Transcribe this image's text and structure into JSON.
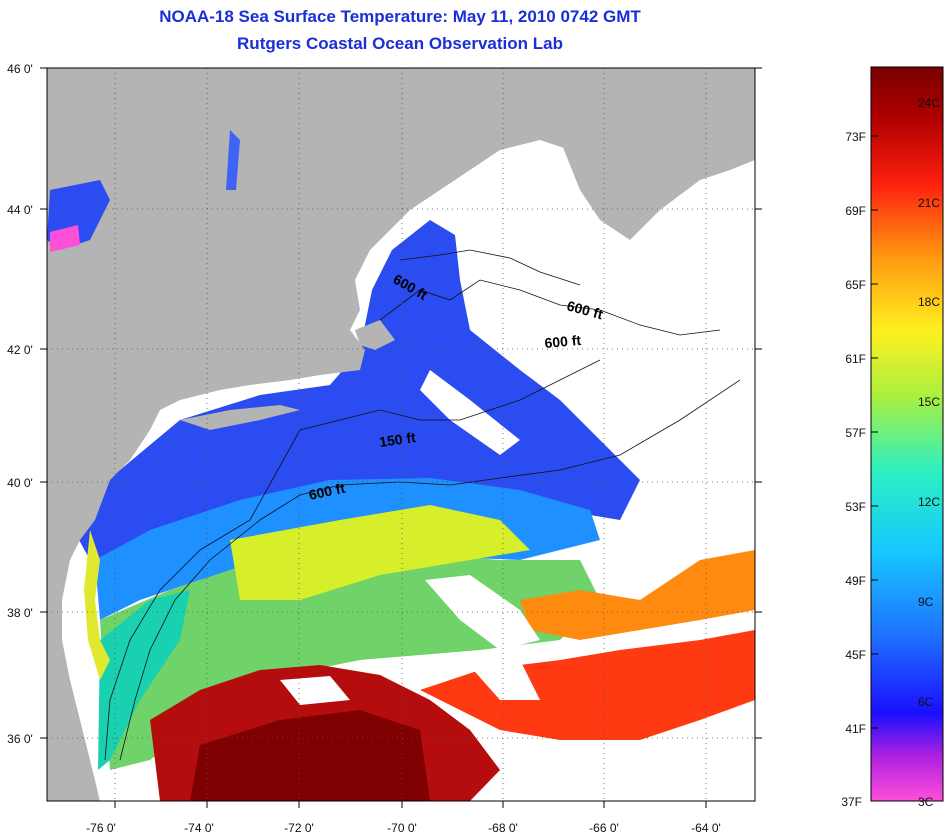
{
  "title": {
    "line1": "NOAA-18 Sea Surface Temperature:  May 11, 2010 0742 GMT",
    "line2": "Rutgers Coastal Ocean Observation Lab"
  },
  "map": {
    "lat_ticks": [
      "46 0'",
      "44 0'",
      "42 0'",
      "40 0'",
      "38 0'",
      "36 0'"
    ],
    "lon_ticks": [
      "-76 0'",
      "-74 0'",
      "-72 0'",
      "-70 0'",
      "-68 0'",
      "-66 0'",
      "-64 0'"
    ],
    "depth_labels": [
      "600 ft",
      "600 ft",
      "600 ft",
      "150 ft",
      "600 ft"
    ],
    "land_color": "#b4b4b4",
    "cloud_color": "#ffffff"
  },
  "colorbar": {
    "fahrenheit": [
      "73F",
      "69F",
      "65F",
      "61F",
      "57F",
      "53F",
      "49F",
      "45F",
      "41F",
      "37F"
    ],
    "celsius": [
      "24C",
      "21C",
      "18C",
      "15C",
      "12C",
      "9C",
      "6C",
      "3C"
    ],
    "colors": [
      "#ff4fd8",
      "#b020e0",
      "#1a10ff",
      "#1f6cff",
      "#16c8ff",
      "#2cf0c0",
      "#a8f040",
      "#fff020",
      "#ff9a10",
      "#ff2010",
      "#b00000",
      "#7a0000"
    ]
  }
}
